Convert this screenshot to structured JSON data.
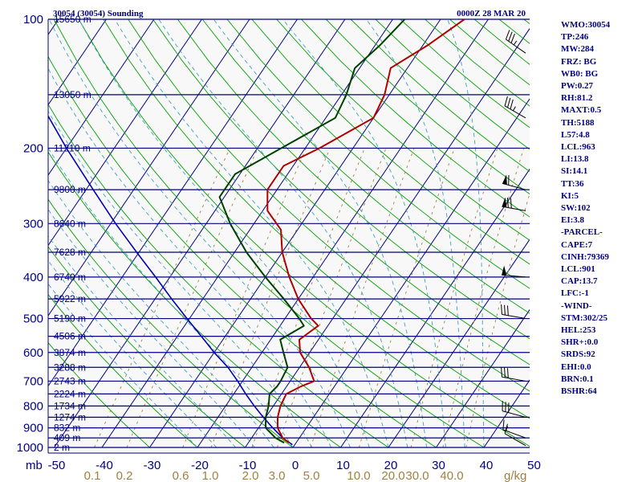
{
  "header": {
    "station": "30054 (30054) Sounding",
    "time": "0000Z 28 MAR 20"
  },
  "indices": [
    "WMO:30054",
    "TP:246",
    "MW:284",
    "FRZ: BG",
    "WB0: BG",
    "PW:0.27",
    "RH:81.2",
    "MAXT:0.5",
    "TH:5188",
    "L57:4.8",
    "LCL:963",
    "LI:13.8",
    "SI:14.1",
    "TT:36",
    "KI:5",
    "SW:102",
    "EI:3.8",
    "-PARCEL-",
    "CAPE:7",
    "CINH:79369",
    "LCL:901",
    "CAP:13.7",
    "LFC:-1",
    "-WIND-",
    "STM:302/25",
    "HEL:253",
    "SHR+:0.0",
    "SRDS:92",
    "EHI:0.0",
    "BRN:0.1",
    "BSHR:64"
  ],
  "chart_data": {
    "type": "line",
    "subtype": "skew-T log-P sounding",
    "pressure_levels": [
      {
        "p": 100,
        "label": "100",
        "height": "15650 m"
      },
      {
        "p": 150,
        "label": "",
        "height": "13050 m"
      },
      {
        "p": 200,
        "label": "200",
        "height": "11210 m"
      },
      {
        "p": 250,
        "label": "",
        "height": "9800 m"
      },
      {
        "p": 300,
        "label": "300",
        "height": "8640 m"
      },
      {
        "p": 350,
        "label": "",
        "height": "7628 m"
      },
      {
        "p": 400,
        "label": "400",
        "height": "6740 m"
      },
      {
        "p": 450,
        "label": "",
        "height": "5922 m"
      },
      {
        "p": 500,
        "label": "500",
        "height": "5190 m"
      },
      {
        "p": 550,
        "label": "",
        "height": "4506 m"
      },
      {
        "p": 600,
        "label": "600",
        "height": "3874 m"
      },
      {
        "p": 650,
        "label": "",
        "height": "3288 m"
      },
      {
        "p": 700,
        "label": "700",
        "height": "2743 m"
      },
      {
        "p": 750,
        "label": "",
        "height": "2224 m"
      },
      {
        "p": 800,
        "label": "800",
        "height": "1734 m"
      },
      {
        "p": 850,
        "label": "",
        "height": "1274 m"
      },
      {
        "p": 900,
        "label": "900",
        "height": "832 m"
      },
      {
        "p": 950,
        "label": "",
        "height": "409 m"
      },
      {
        "p": 1000,
        "label": "1000",
        "height": "2 m"
      }
    ],
    "pressure_unit": "mb",
    "temperature_ticks": [
      "-50",
      "-40",
      "-30",
      "-20",
      "-10",
      "0",
      "10",
      "20",
      "30",
      "40",
      "50"
    ],
    "mixing_ratio_labels": [
      "0.1",
      "0.2",
      "0.6",
      "1.0",
      "2.0",
      "3.0",
      "5.0",
      "10.0",
      "20.0",
      "30.0",
      "40.0"
    ],
    "mixing_ratio_unit": "g/kg",
    "temperature_profile": [
      {
        "p": 975,
        "t": -1.5
      },
      {
        "p": 950,
        "t": -3.5
      },
      {
        "p": 900,
        "t": -6.0
      },
      {
        "p": 850,
        "t": -7.5
      },
      {
        "p": 800,
        "t": -8.5
      },
      {
        "p": 750,
        "t": -9.0
      },
      {
        "p": 720,
        "t": -7.0
      },
      {
        "p": 700,
        "t": -5.0
      },
      {
        "p": 650,
        "t": -8.0
      },
      {
        "p": 600,
        "t": -12.0
      },
      {
        "p": 560,
        "t": -14.0
      },
      {
        "p": 520,
        "t": -12.0
      },
      {
        "p": 500,
        "t": -14.5
      },
      {
        "p": 450,
        "t": -20.0
      },
      {
        "p": 400,
        "t": -25.0
      },
      {
        "p": 350,
        "t": -30.0
      },
      {
        "p": 310,
        "t": -33.5
      },
      {
        "p": 280,
        "t": -39.0
      },
      {
        "p": 250,
        "t": -42.0
      },
      {
        "p": 220,
        "t": -42.0
      },
      {
        "p": 200,
        "t": -37.0
      },
      {
        "p": 170,
        "t": -30.0
      },
      {
        "p": 150,
        "t": -31.0
      },
      {
        "p": 130,
        "t": -33.5
      },
      {
        "p": 115,
        "t": -29.0
      },
      {
        "p": 100,
        "t": -25.0
      }
    ],
    "dewpoint_profile": [
      {
        "p": 975,
        "t": -2.5
      },
      {
        "p": 950,
        "t": -5.0
      },
      {
        "p": 900,
        "t": -8.5
      },
      {
        "p": 850,
        "t": -10.0
      },
      {
        "p": 800,
        "t": -11.0
      },
      {
        "p": 750,
        "t": -12.5
      },
      {
        "p": 720,
        "t": -12.0
      },
      {
        "p": 700,
        "t": -12.0
      },
      {
        "p": 650,
        "t": -12.5
      },
      {
        "p": 600,
        "t": -15.5
      },
      {
        "p": 560,
        "t": -18.0
      },
      {
        "p": 520,
        "t": -15.0
      },
      {
        "p": 500,
        "t": -17.0
      },
      {
        "p": 450,
        "t": -23.0
      },
      {
        "p": 400,
        "t": -30.0
      },
      {
        "p": 350,
        "t": -37.5
      },
      {
        "p": 300,
        "t": -45.0
      },
      {
        "p": 260,
        "t": -51.0
      },
      {
        "p": 230,
        "t": -51.0
      },
      {
        "p": 200,
        "t": -45.0
      },
      {
        "p": 170,
        "t": -38.0
      },
      {
        "p": 150,
        "t": -39.0
      },
      {
        "p": 130,
        "t": -41.0
      },
      {
        "p": 115,
        "t": -39.0
      },
      {
        "p": 100,
        "t": -37.5
      }
    ],
    "parcel_profile": [
      {
        "p": 985,
        "t": -0.5
      },
      {
        "p": 950,
        "t": -3.5
      },
      {
        "p": 900,
        "t": -7.0
      },
      {
        "p": 850,
        "t": -10.5
      },
      {
        "p": 800,
        "t": -14.0
      },
      {
        "p": 750,
        "t": -17.5
      },
      {
        "p": 700,
        "t": -21.0
      },
      {
        "p": 650,
        "t": -25.0
      },
      {
        "p": 600,
        "t": -30.0
      },
      {
        "p": 550,
        "t": -35.0
      },
      {
        "p": 500,
        "t": -40.5
      },
      {
        "p": 450,
        "t": -46.5
      },
      {
        "p": 400,
        "t": -53.0
      },
      {
        "p": 350,
        "t": -60.5
      },
      {
        "p": 300,
        "t": -69.0
      },
      {
        "p": 250,
        "t": -78.5
      },
      {
        "p": 200,
        "t": -90.0
      },
      {
        "p": 150,
        "t": -104.0
      },
      {
        "p": 100,
        "t": -123.0
      }
    ],
    "series_colors": {
      "temperature": "#b00000",
      "dewpoint": "#004000",
      "parcel": "#0000b0",
      "isobar": "#000080",
      "isotherm": "#000080",
      "dry_adiabat": "#00a000",
      "moist_adiabat": "#40a0c0",
      "mixing_ratio": "#a08040"
    },
    "wind_barbs": [
      {
        "p": 990,
        "dir": 300,
        "speed_kt": 10
      },
      {
        "p": 950,
        "dir": 290,
        "speed_kt": 15
      },
      {
        "p": 850,
        "dir": 285,
        "speed_kt": 30
      },
      {
        "p": 700,
        "dir": 280,
        "speed_kt": 30
      },
      {
        "p": 500,
        "dir": 280,
        "speed_kt": 30
      },
      {
        "p": 400,
        "dir": 275,
        "speed_kt": 50
      },
      {
        "p": 280,
        "dir": 280,
        "speed_kt": 70
      },
      {
        "p": 250,
        "dir": 285,
        "speed_kt": 60
      },
      {
        "p": 170,
        "dir": 300,
        "speed_kt": 35
      },
      {
        "p": 120,
        "dir": 305,
        "speed_kt": 35
      }
    ],
    "grid": true
  }
}
